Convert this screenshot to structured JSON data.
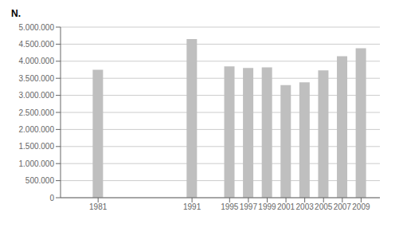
{
  "chart_data": {
    "type": "bar",
    "ylabel": "N.",
    "x": [
      1981,
      1991,
      1995,
      1997,
      1999,
      2001,
      2003,
      2005,
      2007,
      2009
    ],
    "values": [
      3750000,
      4650000,
      3850000,
      3800000,
      3820000,
      3300000,
      3380000,
      3730000,
      4150000,
      4380000
    ],
    "color": "#bfbfbf",
    "xlim": [
      1977,
      2011
    ],
    "xticks": [
      1981,
      1991,
      1995,
      1997,
      1999,
      2001,
      2003,
      2005,
      2007,
      2009
    ],
    "ylim": [
      0,
      5000000
    ],
    "yticks": [
      0,
      {
        "value": 500000,
        "label": "500.000"
      },
      {
        "value": 1000000,
        "label": "1.000.000"
      },
      {
        "value": 1500000,
        "label": "1.500.000"
      },
      {
        "value": 2000000,
        "label": "2.000.000"
      },
      {
        "value": 2500000,
        "label": "2.500.000"
      },
      {
        "value": 3000000,
        "label": "3.000.000"
      },
      {
        "value": 3500000,
        "label": "3.500.000"
      },
      {
        "value": 4000000,
        "label": "4.000.000"
      },
      {
        "value": 4500000,
        "label": "4.500.000"
      },
      {
        "value": 5000000,
        "label": "5.000.000"
      }
    ],
    "grid": true
  }
}
